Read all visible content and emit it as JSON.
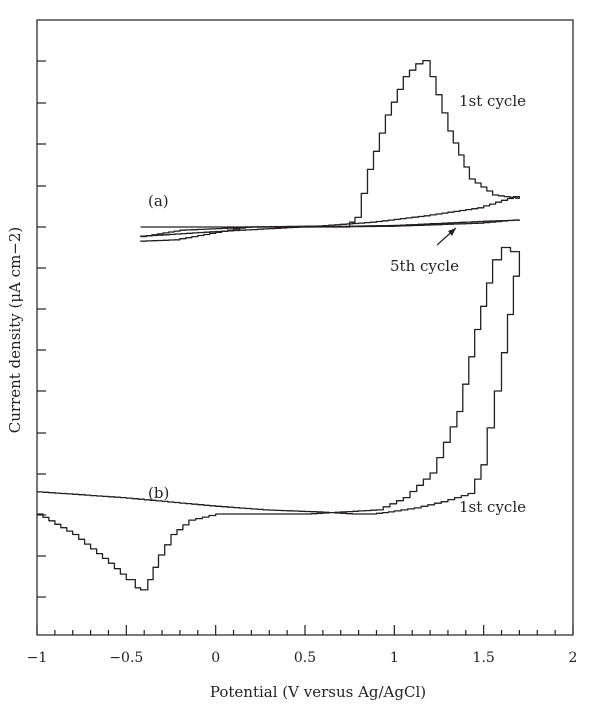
{
  "chart_data": {
    "type": "line",
    "title": "",
    "xlabel": "Potential (V versus Ag/AgCl)",
    "ylabel": "Current density (μA cm−2)",
    "xlim": [
      -1,
      2
    ],
    "x_ticks": [
      "−1",
      "−0.5",
      "0",
      "0.5",
      "1",
      "1.5",
      "2"
    ],
    "y_tick_labels": "none",
    "grid": false,
    "legend": "none",
    "colors": {
      "line": "#231f20"
    },
    "panels": [
      {
        "label": "(a)",
        "series": [
          {
            "annotation": "1st cycle",
            "x": [
              -0.42,
              -0.2,
              0.2,
              0.72,
              0.78,
              0.85,
              0.95,
              1.05,
              1.12,
              1.16,
              1.2,
              1.3,
              1.42,
              1.55,
              1.68,
              1.7,
              1.5,
              1.2,
              0.9,
              0.6,
              0.2,
              0.0,
              -0.2,
              -0.42
            ],
            "y": [
              -0.3,
              -0.1,
              0.0,
              0.0,
              0.3,
              1.8,
              3.5,
              4.7,
              5.1,
              5.2,
              4.7,
              3.0,
              1.5,
              1.0,
              0.9,
              0.95,
              0.6,
              0.35,
              0.15,
              0.03,
              0.0,
              -0.2,
              -0.4,
              -0.45
            ]
          },
          {
            "annotation": "5th cycle",
            "x": [
              -0.42,
              0.0,
              0.5,
              1.0,
              1.5,
              1.7,
              1.5,
              1.0,
              0.5,
              0.0,
              -0.42
            ],
            "y": [
              0.0,
              0.0,
              0.0,
              0.05,
              0.18,
              0.22,
              0.12,
              0.02,
              0.0,
              -0.15,
              -0.3
            ]
          }
        ]
      },
      {
        "label": "(b)",
        "series": [
          {
            "annotation": "1st cycle",
            "x": [
              -1.0,
              -0.8,
              -0.6,
              -0.5,
              -0.45,
              -0.42,
              -0.38,
              -0.32,
              -0.25,
              -0.15,
              0.0,
              0.5,
              0.9,
              1.05,
              1.2,
              1.35,
              1.45,
              1.55,
              1.6,
              1.65,
              1.7,
              1.7,
              1.6,
              1.52,
              1.45,
              1.3,
              1.15,
              1.0,
              0.9,
              0.8,
              0.6,
              0.3,
              0.0,
              -0.5,
              -1.0
            ],
            "y": [
              0.0,
              -0.5,
              -1.2,
              -1.6,
              -1.8,
              -1.85,
              -1.6,
              -1.0,
              -0.5,
              -0.15,
              0.0,
              0.0,
              0.1,
              0.4,
              1.0,
              2.5,
              4.5,
              6.2,
              6.5,
              6.4,
              6.0,
              5.8,
              3.0,
              1.2,
              0.5,
              0.3,
              0.15,
              0.05,
              0.0,
              0.0,
              0.05,
              0.1,
              0.2,
              0.4,
              0.55
            ]
          }
        ]
      }
    ]
  }
}
